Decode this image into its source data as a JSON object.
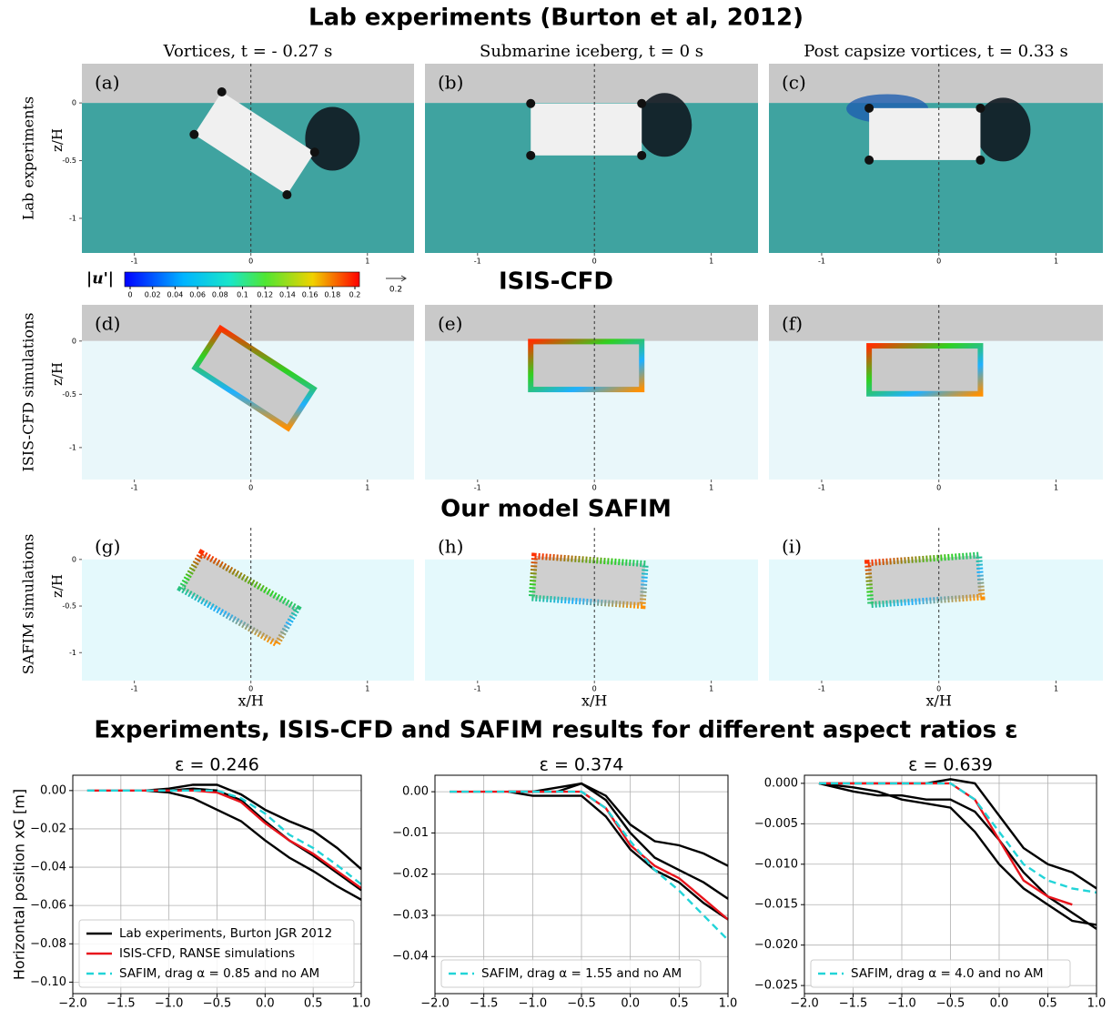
{
  "header": {
    "title": "Lab experiments (Burton et al, 2012)"
  },
  "columns": [
    "Vortices, t = - 0.27 s",
    "Submarine iceberg, t = 0 s",
    "Post capsize vortices, t = 0.33 s"
  ],
  "rows": [
    {
      "label": "Lab experiments",
      "panels": [
        "(a)",
        "(b)",
        "(c)"
      ]
    },
    {
      "title": "ISIS-CFD",
      "label": "ISIS-CFD simulations",
      "panels": [
        "(d)",
        "(e)",
        "(f)"
      ]
    },
    {
      "title": "Our model SAFIM",
      "label": "SAFIM simulations",
      "panels": [
        "(g)",
        "(h)",
        "(i)"
      ]
    }
  ],
  "panel_axes": {
    "xlabel": "x/H",
    "ylabel": "z/H",
    "xticks": [
      -1,
      0,
      1
    ],
    "yticks": [
      0,
      -0.5,
      -1
    ]
  },
  "colorbar": {
    "label": "|u'|",
    "ticks": [
      0,
      0.02,
      0.04,
      0.06,
      0.08,
      0.1,
      0.12,
      0.14,
      0.16,
      0.18,
      0.2
    ],
    "arrow": "0.2"
  },
  "section_title": "Experiments, ISIS-CFD and SAFIM results for different aspect ratios ε",
  "chart_data": [
    {
      "type": "line",
      "title": "ε = 0.246",
      "ylabel": "Horizontal position xG [m]",
      "grid": true,
      "legend": "lower left",
      "x": [
        -1.85,
        -1.5,
        -1.25,
        -1.0,
        -0.75,
        -0.5,
        -0.25,
        0,
        0.25,
        0.5,
        0.75,
        1.0
      ],
      "xlim": [
        -2.0,
        1.0
      ],
      "xticks": [
        {
          "value": -2.0,
          "label": "−2.0"
        },
        {
          "value": -1.5,
          "label": "−1.5"
        },
        {
          "value": -1.0,
          "label": "−1.0"
        },
        {
          "value": -0.5,
          "label": "−0.5"
        },
        {
          "value": 0,
          "label": "0.0"
        },
        {
          "value": 0.5,
          "label": "0.5"
        },
        {
          "value": 1.0,
          "label": "1.0"
        }
      ],
      "ylim": [
        -0.106,
        0.008
      ],
      "yticks": [
        {
          "value": 0,
          "label": "0.00"
        },
        {
          "value": -0.02,
          "label": "−0.02"
        },
        {
          "value": -0.04,
          "label": "−0.04"
        },
        {
          "value": -0.06,
          "label": "−0.06"
        },
        {
          "value": -0.08,
          "label": "−0.08"
        },
        {
          "value": -0.1,
          "label": "−0.10"
        }
      ],
      "series": [
        {
          "name": "Lab experiments, Burton JGR 2012",
          "color": "#000000",
          "style": "solid",
          "values": [
            null,
            null,
            0,
            0.001,
            0.003,
            0.003,
            -0.002,
            -0.01,
            -0.016,
            -0.021,
            -0.03,
            -0.041
          ]
        },
        {
          "color": "#000000",
          "style": "solid",
          "values": [
            null,
            null,
            0,
            0,
            0.001,
            0,
            -0.005,
            -0.016,
            -0.026,
            -0.034,
            -0.043,
            -0.052
          ]
        },
        {
          "color": "#000000",
          "style": "solid",
          "values": [
            null,
            null,
            0,
            -0.001,
            -0.004,
            -0.01,
            -0.016,
            -0.026,
            -0.035,
            -0.042,
            -0.05,
            -0.057
          ]
        },
        {
          "name": "ISIS-CFD, RANSE simulations",
          "color": "#e8141c",
          "style": "solid",
          "values": [
            0,
            0,
            0,
            0,
            0,
            -0.001,
            -0.006,
            -0.017,
            -0.026,
            -0.033,
            -0.042,
            -0.051
          ]
        },
        {
          "name": "SAFIM, drag α = 0.85 and no AM",
          "color": "#22d4d8",
          "style": "dashed",
          "values": [
            0,
            0,
            0,
            0,
            0,
            0,
            -0.004,
            -0.012,
            -0.023,
            -0.03,
            -0.039,
            -0.049
          ]
        }
      ]
    },
    {
      "type": "line",
      "title": "ε = 0.374",
      "grid": true,
      "legend": "lower left",
      "x": [
        -1.85,
        -1.5,
        -1.25,
        -1.0,
        -0.75,
        -0.5,
        -0.25,
        0,
        0.25,
        0.5,
        0.75,
        1.0
      ],
      "xlim": [
        -2.0,
        1.0
      ],
      "xticks": [
        {
          "value": -2.0,
          "label": "−2.0"
        },
        {
          "value": -1.5,
          "label": "−1.5"
        },
        {
          "value": -1.0,
          "label": "−1.0"
        },
        {
          "value": -0.5,
          "label": "−0.5"
        },
        {
          "value": 0,
          "label": "0.0"
        },
        {
          "value": 0.5,
          "label": "0.5"
        },
        {
          "value": 1.0,
          "label": "1.0"
        }
      ],
      "ylim": [
        -0.049,
        0.004
      ],
      "yticks": [
        {
          "value": 0,
          "label": "0.00"
        },
        {
          "value": -0.01,
          "label": "−0.01"
        },
        {
          "value": -0.02,
          "label": "−0.02"
        },
        {
          "value": -0.03,
          "label": "−0.03"
        },
        {
          "value": -0.04,
          "label": "−0.04"
        }
      ],
      "series": [
        {
          "color": "#000000",
          "style": "solid",
          "values": [
            null,
            null,
            0,
            0,
            0.001,
            0.002,
            -0.001,
            -0.008,
            -0.012,
            -0.013,
            -0.015,
            -0.018
          ]
        },
        {
          "color": "#000000",
          "style": "solid",
          "values": [
            null,
            null,
            0,
            0,
            0,
            0.002,
            -0.002,
            -0.01,
            -0.016,
            -0.019,
            -0.022,
            -0.026
          ]
        },
        {
          "color": "#000000",
          "style": "solid",
          "values": [
            null,
            null,
            0,
            -0.001,
            -0.001,
            -0.001,
            -0.006,
            -0.014,
            -0.019,
            -0.022,
            -0.027,
            -0.031
          ]
        },
        {
          "color": "#e8141c",
          "style": "solid",
          "values": [
            0,
            0,
            0,
            0,
            0,
            0,
            -0.004,
            -0.013,
            -0.018,
            -0.021,
            -0.026,
            -0.031
          ]
        },
        {
          "name": "SAFIM, drag α = 1.55 and no AM",
          "color": "#22d4d8",
          "style": "dashed",
          "values": [
            0,
            0,
            0,
            0,
            0,
            0,
            -0.004,
            -0.012,
            -0.019,
            -0.024,
            -0.03,
            -0.036
          ]
        }
      ]
    },
    {
      "type": "line",
      "title": "ε = 0.639",
      "grid": true,
      "legend": "lower left",
      "x": [
        -1.85,
        -1.5,
        -1.25,
        -1.0,
        -0.75,
        -0.5,
        -0.25,
        0,
        0.25,
        0.5,
        0.75,
        1.0
      ],
      "xlim": [
        -2.0,
        1.0
      ],
      "xticks": [
        {
          "value": -2.0,
          "label": "−2.0"
        },
        {
          "value": -1.5,
          "label": "−1.5"
        },
        {
          "value": -1.0,
          "label": "−1.0"
        },
        {
          "value": -0.5,
          "label": "−0.5"
        },
        {
          "value": 0,
          "label": "0.0"
        },
        {
          "value": 0.5,
          "label": "0.5"
        },
        {
          "value": 1.0,
          "label": "1.0"
        }
      ],
      "ylim": [
        -0.026,
        0.001
      ],
      "yticks": [
        {
          "value": 0,
          "label": "0.000"
        },
        {
          "value": -0.005,
          "label": "−0.005"
        },
        {
          "value": -0.01,
          "label": "−0.010"
        },
        {
          "value": -0.015,
          "label": "−0.015"
        },
        {
          "value": -0.02,
          "label": "−0.020"
        },
        {
          "value": -0.025,
          "label": "−0.025"
        }
      ],
      "series": [
        {
          "color": "#000000",
          "style": "solid",
          "values": [
            0,
            0,
            0,
            0,
            0,
            0.0005,
            0,
            -0.004,
            -0.008,
            -0.01,
            -0.011,
            -0.013
          ]
        },
        {
          "color": "#000000",
          "style": "solid",
          "values": [
            0,
            -0.001,
            -0.0015,
            -0.0015,
            -0.002,
            -0.002,
            -0.0035,
            -0.007,
            -0.011,
            -0.014,
            -0.016,
            -0.018
          ]
        },
        {
          "color": "#000000",
          "style": "solid",
          "values": [
            0,
            -0.0005,
            -0.001,
            -0.002,
            -0.0025,
            -0.003,
            -0.006,
            -0.01,
            -0.013,
            -0.015,
            -0.017,
            -0.0175
          ]
        },
        {
          "color": "#e8141c",
          "style": "solid",
          "values": [
            0,
            0,
            0,
            0,
            0,
            0,
            -0.002,
            -0.007,
            -0.012,
            -0.014,
            -0.015,
            null
          ]
        },
        {
          "name": "SAFIM, drag α = 4.0 and no AM",
          "color": "#22d4d8",
          "style": "dashed",
          "values": [
            0,
            0,
            0,
            0,
            0,
            0,
            -0.002,
            -0.006,
            -0.01,
            -0.012,
            -0.013,
            -0.0135
          ]
        }
      ]
    }
  ]
}
